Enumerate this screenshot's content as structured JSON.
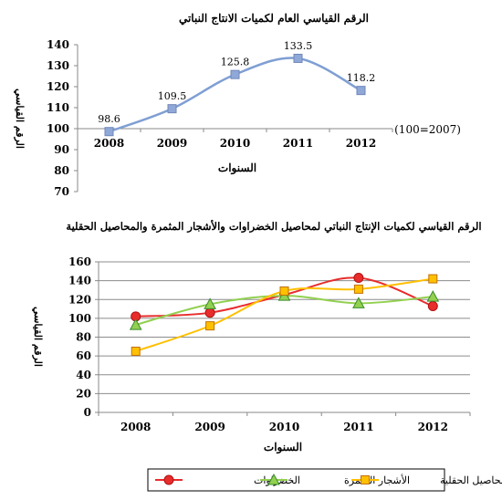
{
  "chart_data": [
    {
      "type": "line",
      "title": "الرقم القياسي العام لكميات الانتاج النباتي",
      "annotation": "(100=2007)",
      "xlabel": "السنوات",
      "ylabel": "الرقم القياسي",
      "x": [
        "2008",
        "2009",
        "2010",
        "2011",
        "2012"
      ],
      "series": [
        {
          "values": [
            98.6,
            109.5,
            125.8,
            133.5,
            118.2
          ],
          "color": "#7f9fd3",
          "marker": "square"
        }
      ],
      "data_labels": [
        "98.6",
        "109.5",
        "125.8",
        "133.5",
        "118.2"
      ],
      "ylim": [
        70,
        140
      ],
      "yticks": [
        "70",
        "80",
        "90",
        "100",
        "110",
        "120",
        "130",
        "140"
      ],
      "x_axis_at": 100,
      "grid": false,
      "smooth": true
    },
    {
      "type": "line",
      "title": "الرقم القياسي لكميات الإنتاج النباتي لمحاصيل الخضراوات والأشجار المثمرة والمحاصيل الحقلية",
      "xlabel": "السنوات",
      "ylabel": "الرقم القياسي",
      "x": [
        "2008",
        "2009",
        "2010",
        "2011",
        "2012"
      ],
      "series": [
        {
          "name": "الخضراوات",
          "values": [
            102,
            106,
            125,
            143,
            113
          ],
          "color": "#e82c2c",
          "marker": "circle"
        },
        {
          "name": "الأشجار المثمرة",
          "values": [
            93,
            115,
            124,
            116,
            123
          ],
          "color": "#92d050",
          "marker": "triangle"
        },
        {
          "name": "المحاصيل الحقلية",
          "values": [
            65,
            92,
            129,
            131,
            142
          ],
          "color": "#ffc000",
          "marker": "square"
        }
      ],
      "ylim": [
        0,
        160
      ],
      "yticks": [
        "0",
        "20",
        "40",
        "60",
        "80",
        "100",
        "120",
        "140",
        "160"
      ],
      "grid": true,
      "legend": "bottom",
      "smooth": true
    }
  ]
}
